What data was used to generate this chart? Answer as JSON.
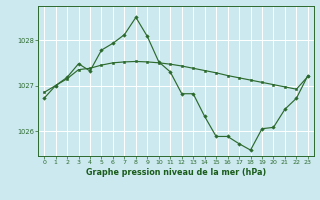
{
  "title": "Graphe pression niveau de la mer (hPa)",
  "bg_color": "#cce9f0",
  "line_color": "#2d6a2d",
  "marker_color": "#2d6a2d",
  "grid_color": "#ffffff",
  "axis_color": "#2d6a2d",
  "text_color": "#1a5c1a",
  "xlim": [
    -0.5,
    23.5
  ],
  "ylim": [
    1025.45,
    1028.75
  ],
  "yticks": [
    1026,
    1027,
    1028
  ],
  "xticks": [
    0,
    1,
    2,
    3,
    4,
    5,
    6,
    7,
    8,
    9,
    10,
    11,
    12,
    13,
    14,
    15,
    16,
    17,
    18,
    19,
    20,
    21,
    22,
    23
  ],
  "series1_x": [
    0,
    1,
    2,
    3,
    4,
    5,
    6,
    7,
    8,
    9,
    10,
    11,
    12,
    13,
    14,
    15,
    16,
    17,
    18,
    19,
    20,
    21,
    22,
    23
  ],
  "series1_y": [
    1026.85,
    1027.0,
    1027.15,
    1027.35,
    1027.38,
    1027.45,
    1027.5,
    1027.52,
    1027.53,
    1027.52,
    1027.5,
    1027.47,
    1027.43,
    1027.38,
    1027.33,
    1027.28,
    1027.22,
    1027.17,
    1027.12,
    1027.07,
    1027.02,
    1026.97,
    1026.92,
    1027.2
  ],
  "series2_x": [
    0,
    1,
    2,
    3,
    4,
    5,
    6,
    7,
    8,
    9,
    10,
    11,
    12,
    13,
    14,
    15,
    16,
    17,
    18,
    19,
    20,
    21,
    22,
    23
  ],
  "series2_y": [
    1026.72,
    1027.0,
    1027.18,
    1027.48,
    1027.32,
    1027.78,
    1027.93,
    1028.12,
    1028.5,
    1028.08,
    1027.52,
    1027.3,
    1026.82,
    1026.82,
    1026.32,
    1025.88,
    1025.88,
    1025.72,
    1025.58,
    1026.05,
    1026.08,
    1026.48,
    1026.72,
    1027.22
  ]
}
